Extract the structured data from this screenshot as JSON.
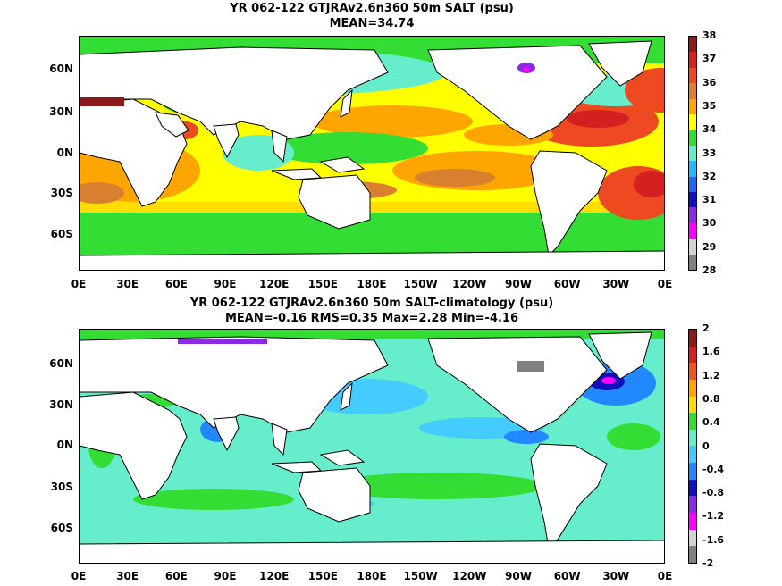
{
  "top": {
    "title_line1": "YR 062-122 GTJRAv2.6n360 50m SALT (psu)",
    "title_line2": "MEAN=34.74",
    "colorbar": {
      "labels": [
        "38",
        "37",
        "36",
        "35",
        "34",
        "33",
        "32",
        "31",
        "30",
        "29",
        "28"
      ],
      "colors": [
        "#8b1a1a",
        "#d42020",
        "#ee4a22",
        "#d98030",
        "#ffa500",
        "#ffff00",
        "#33dd33",
        "#66eecc",
        "#22bbff",
        "#2266ee",
        "#1010c0",
        "#8a2be2",
        "#ff00ff",
        "#d3d3d3",
        "#808080"
      ]
    }
  },
  "bottom": {
    "title_line1": "YR 062-122 GTJRAv2.6n360 50m SALT-climatology (psu)",
    "title_line2": "MEAN=-0.16   RMS=0.35   Max=2.28   Min=-4.16",
    "colorbar": {
      "labels": [
        "2",
        "1.6",
        "1.2",
        "0.8",
        "0.4",
        "0",
        "-0.4",
        "-0.8",
        "-1.2",
        "-1.6",
        "-2"
      ],
      "colors": [
        "#8b1a1a",
        "#d42020",
        "#ee5522",
        "#ffa500",
        "#ffdd00",
        "#33dd33",
        "#66eecc",
        "#44ccff",
        "#2288ff",
        "#1010c0",
        "#8a2be2",
        "#ff00ff",
        "#d3d3d3",
        "#808080"
      ]
    }
  },
  "lat_labels": [
    "60N",
    "30N",
    "0N",
    "30S",
    "60S"
  ],
  "lon_labels": [
    "0E",
    "30E",
    "60E",
    "90E",
    "120E",
    "150E",
    "180E",
    "150W",
    "120W",
    "90W",
    "60W",
    "30W",
    "0E"
  ]
}
